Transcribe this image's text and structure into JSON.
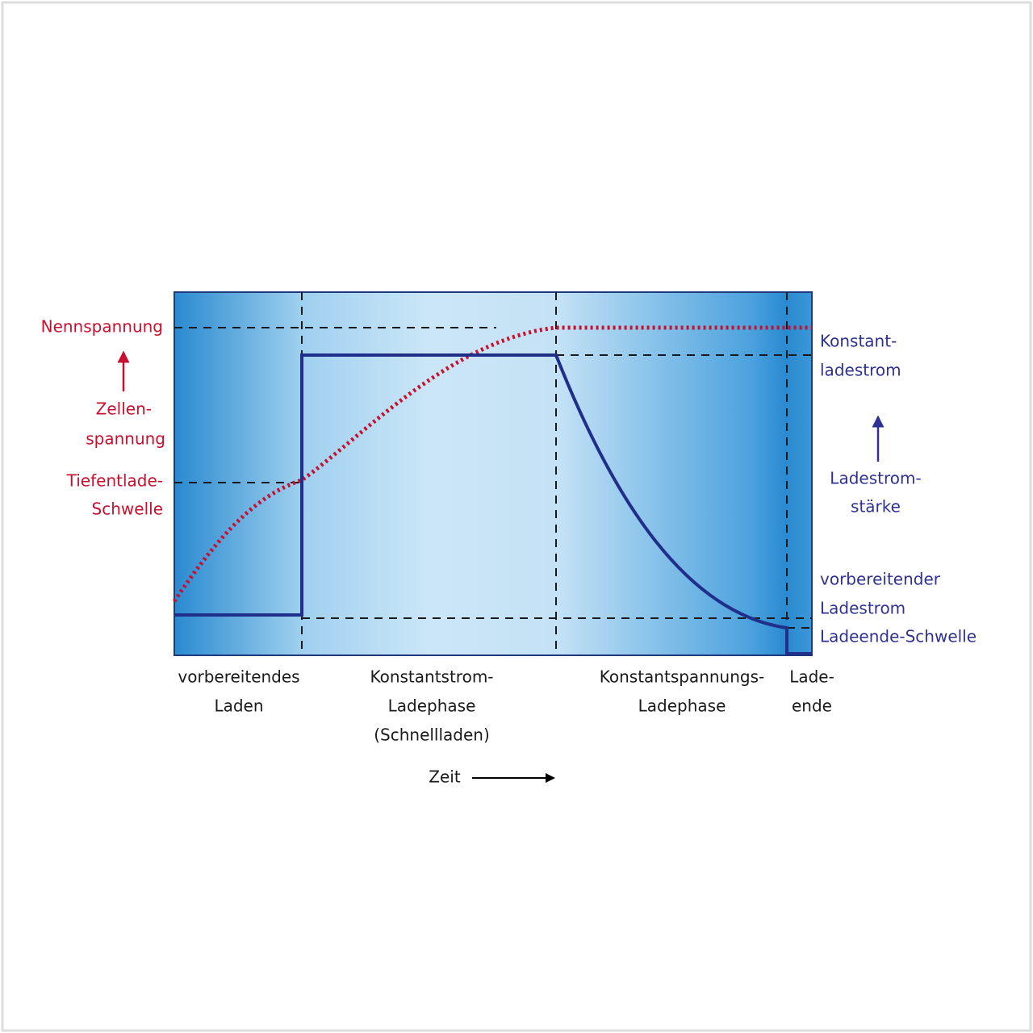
{
  "left_labels": {
    "nominal": [
      "Nennspannung"
    ],
    "axis": [
      "Zellen-",
      "spannung"
    ],
    "threshold": [
      "Tiefentlade-",
      "Schwelle"
    ]
  },
  "right_labels": {
    "constant": [
      "Konstant-",
      "ladestrom"
    ],
    "axis": [
      "Ladestrom-",
      "stärke"
    ],
    "preliminary": [
      "vorbereitender",
      "Ladestrom"
    ],
    "end_threshold": [
      "Ladeende-Schwelle"
    ]
  },
  "phases": [
    [
      "vorbereitendes",
      "Laden"
    ],
    [
      "Konstantstrom-",
      "Ladephase",
      "(Schnellladen)"
    ],
    [
      "Konstantspannungs-",
      "Ladephase"
    ],
    [
      "Lade-",
      "ende"
    ]
  ],
  "x_axis": {
    "label": "Zeit"
  }
}
